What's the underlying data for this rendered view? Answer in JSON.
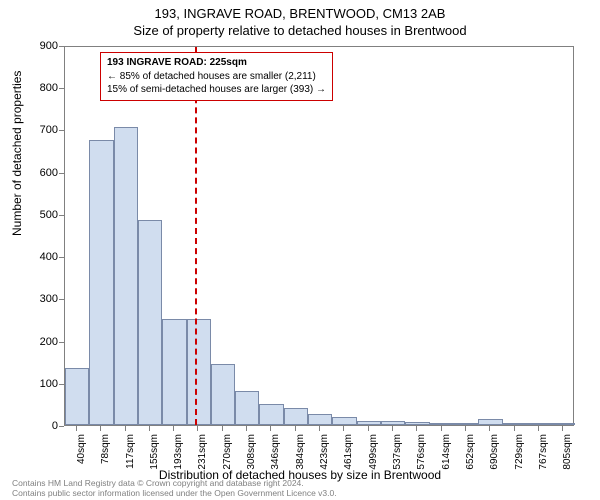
{
  "title": "193, INGRAVE ROAD, BRENTWOOD, CM13 2AB",
  "subtitle": "Size of property relative to detached houses in Brentwood",
  "ylabel": "Number of detached properties",
  "xlabel": "Distribution of detached houses by size in Brentwood",
  "footer_line1": "Contains HM Land Registry data © Crown copyright and database right 2024.",
  "footer_line2": "Contains public sector information licensed under the Open Government Licence v3.0.",
  "info_box": {
    "line1": "193 INGRAVE ROAD: 225sqm",
    "line2": "← 85% of detached houses are smaller (2,211)",
    "line3": "15% of semi-detached houses are larger (393) →"
  },
  "chart": {
    "type": "histogram",
    "ylim": [
      0,
      900
    ],
    "ytick_step": 100,
    "bar_fill": "#d0ddef",
    "bar_stroke": "#7a8aa8",
    "vline_color": "#cc0000",
    "vline_x": 225,
    "xlim": [
      21,
      824
    ],
    "xtick_labels": [
      "40sqm",
      "78sqm",
      "117sqm",
      "155sqm",
      "193sqm",
      "231sqm",
      "270sqm",
      "308sqm",
      "346sqm",
      "384sqm",
      "423sqm",
      "461sqm",
      "499sqm",
      "537sqm",
      "576sqm",
      "614sqm",
      "652sqm",
      "690sqm",
      "729sqm",
      "767sqm",
      "805sqm"
    ],
    "xtick_values": [
      40,
      78,
      117,
      155,
      193,
      231,
      270,
      308,
      346,
      384,
      423,
      461,
      499,
      537,
      576,
      614,
      652,
      690,
      729,
      767,
      805
    ],
    "bars": [
      {
        "x0": 21,
        "x1": 59,
        "y": 135
      },
      {
        "x0": 59,
        "x1": 98,
        "y": 675
      },
      {
        "x0": 98,
        "x1": 136,
        "y": 705
      },
      {
        "x0": 136,
        "x1": 174,
        "y": 485
      },
      {
        "x0": 174,
        "x1": 213,
        "y": 250
      },
      {
        "x0": 213,
        "x1": 251,
        "y": 250
      },
      {
        "x0": 251,
        "x1": 289,
        "y": 145
      },
      {
        "x0": 289,
        "x1": 327,
        "y": 80
      },
      {
        "x0": 327,
        "x1": 366,
        "y": 50
      },
      {
        "x0": 366,
        "x1": 404,
        "y": 40
      },
      {
        "x0": 404,
        "x1": 442,
        "y": 25
      },
      {
        "x0": 442,
        "x1": 480,
        "y": 20
      },
      {
        "x0": 480,
        "x1": 519,
        "y": 10
      },
      {
        "x0": 519,
        "x1": 557,
        "y": 10
      },
      {
        "x0": 557,
        "x1": 595,
        "y": 8
      },
      {
        "x0": 595,
        "x1": 633,
        "y": 5
      },
      {
        "x0": 633,
        "x1": 672,
        "y": 3
      },
      {
        "x0": 672,
        "x1": 710,
        "y": 15
      },
      {
        "x0": 710,
        "x1": 748,
        "y": 3
      },
      {
        "x0": 748,
        "x1": 786,
        "y": 3
      },
      {
        "x0": 786,
        "x1": 824,
        "y": 2
      }
    ]
  }
}
